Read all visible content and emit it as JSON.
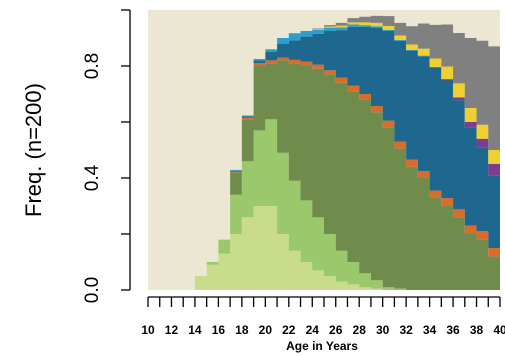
{
  "chart_data": {
    "type": "area",
    "stacked": true,
    "xlabel": "Age in Years",
    "ylabel": "Freq. (n=200)",
    "xlim": [
      10,
      40
    ],
    "ylim": [
      0,
      1
    ],
    "x_ticks": [
      10,
      12,
      14,
      16,
      18,
      20,
      22,
      24,
      26,
      28,
      30,
      32,
      34,
      36,
      38,
      40
    ],
    "x_tick_labels": [
      "10",
      "12",
      "14",
      "16",
      "18",
      "20",
      "22",
      "24",
      "26",
      "28",
      "30",
      "32",
      "34",
      "36",
      "38",
      "40"
    ],
    "y_ticks": [
      0.0,
      0.4,
      0.8
    ],
    "y_tick_labels": [
      "0.0",
      "0.4",
      "0.8"
    ],
    "grid": false,
    "x": [
      10,
      11,
      12,
      13,
      14,
      15,
      16,
      17,
      18,
      19,
      20,
      21,
      22,
      23,
      24,
      25,
      26,
      27,
      28,
      29,
      30,
      31,
      32,
      33,
      34,
      35,
      36,
      37,
      38,
      39,
      40
    ],
    "series": [
      {
        "color": "#c8dc8c",
        "values": [
          0,
          0,
          0,
          0,
          0.05,
          0.09,
          0.13,
          0.2,
          0.26,
          0.3,
          0.3,
          0.2,
          0.14,
          0.1,
          0.07,
          0.05,
          0.03,
          0.02,
          0.01,
          0.005,
          0,
          0,
          0,
          0,
          0,
          0,
          0,
          0,
          0,
          0,
          0
        ]
      },
      {
        "color": "#9cc86c",
        "values": [
          0,
          0,
          0,
          0,
          0,
          0.01,
          0.05,
          0.14,
          0.2,
          0.27,
          0.31,
          0.29,
          0.25,
          0.22,
          0.19,
          0.15,
          0.11,
          0.08,
          0.05,
          0.03,
          0.01,
          0.005,
          0,
          0,
          0,
          0,
          0,
          0,
          0,
          0,
          0
        ]
      },
      {
        "color": "#6f8c4c",
        "values": [
          0,
          0,
          0,
          0,
          0,
          0,
          0,
          0.08,
          0.15,
          0.23,
          0.2,
          0.33,
          0.42,
          0.48,
          0.53,
          0.57,
          0.6,
          0.61,
          0.62,
          0.6,
          0.57,
          0.5,
          0.44,
          0.4,
          0.33,
          0.3,
          0.26,
          0.2,
          0.18,
          0.12,
          0.1
        ]
      },
      {
        "color": "#d86c2c",
        "values": [
          0,
          0,
          0,
          0,
          0,
          0,
          0,
          0.003,
          0.005,
          0.01,
          0.01,
          0.01,
          0.012,
          0.015,
          0.015,
          0.015,
          0.018,
          0.02,
          0.02,
          0.022,
          0.025,
          0.025,
          0.025,
          0.025,
          0.025,
          0.028,
          0.028,
          0.03,
          0.03,
          0.03,
          0.03
        ]
      },
      {
        "color": "#1e6890",
        "values": [
          0,
          0,
          0,
          0,
          0,
          0,
          0,
          0.003,
          0.005,
          0.01,
          0.03,
          0.05,
          0.07,
          0.09,
          0.11,
          0.14,
          0.17,
          0.21,
          0.24,
          0.28,
          0.32,
          0.36,
          0.39,
          0.41,
          0.44,
          0.42,
          0.39,
          0.35,
          0.3,
          0.26,
          0.22
        ]
      },
      {
        "color": "#2aa0d0",
        "values": [
          0,
          0,
          0,
          0,
          0,
          0,
          0,
          0.003,
          0.003,
          0.005,
          0.01,
          0.02,
          0.025,
          0.02,
          0.015,
          0.012,
          0.01,
          0.008,
          0.006,
          0.005,
          0.004,
          0.003,
          0.002,
          0.002,
          0.002,
          0,
          0,
          0,
          0,
          0,
          0
        ]
      },
      {
        "color": "#7b3c94",
        "values": [
          0,
          0,
          0,
          0,
          0,
          0,
          0,
          0,
          0,
          0,
          0,
          0,
          0,
          0,
          0,
          0,
          0,
          0,
          0,
          0,
          0,
          0,
          0,
          0,
          0,
          0.005,
          0.01,
          0.02,
          0.03,
          0.04,
          0.05
        ]
      },
      {
        "color": "#f0d030",
        "values": [
          0,
          0,
          0,
          0,
          0,
          0,
          0,
          0,
          0,
          0,
          0,
          0,
          0,
          0,
          0.002,
          0.004,
          0.006,
          0.008,
          0.01,
          0.012,
          0.014,
          0.016,
          0.02,
          0.025,
          0.03,
          0.045,
          0.05,
          0.05,
          0.05,
          0.05,
          0.05
        ]
      },
      {
        "color": "#808080",
        "values": [
          0,
          0,
          0,
          0,
          0,
          0,
          0,
          0,
          0,
          0,
          0,
          0,
          0,
          0,
          0.002,
          0.005,
          0.01,
          0.015,
          0.02,
          0.025,
          0.035,
          0.045,
          0.065,
          0.09,
          0.12,
          0.15,
          0.18,
          0.25,
          0.3,
          0.37,
          0.43
        ]
      }
    ],
    "remainder_color": "#ebe7d2"
  }
}
